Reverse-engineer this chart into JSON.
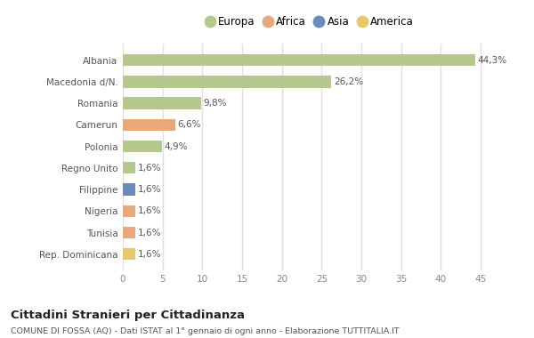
{
  "categories": [
    "Albania",
    "Macedonia d/N.",
    "Romania",
    "Camerun",
    "Polonia",
    "Regno Unito",
    "Filippine",
    "Nigeria",
    "Tunisia",
    "Rep. Dominicana"
  ],
  "values": [
    44.3,
    26.2,
    9.8,
    6.6,
    4.9,
    1.6,
    1.6,
    1.6,
    1.6,
    1.6
  ],
  "labels": [
    "44,3%",
    "26,2%",
    "9,8%",
    "6,6%",
    "4,9%",
    "1,6%",
    "1,6%",
    "1,6%",
    "1,6%",
    "1,6%"
  ],
  "colors": [
    "#b5c98e",
    "#b5c98e",
    "#b5c98e",
    "#e8a87c",
    "#b5c98e",
    "#b5c98e",
    "#6b8cba",
    "#e8a87c",
    "#e8a87c",
    "#e8c96a"
  ],
  "legend_labels": [
    "Europa",
    "Africa",
    "Asia",
    "America"
  ],
  "legend_colors": [
    "#b5c98e",
    "#e8a87c",
    "#6b8cba",
    "#e8c96a"
  ],
  "title": "Cittadini Stranieri per Cittadinanza",
  "subtitle": "COMUNE DI FOSSA (AQ) - Dati ISTAT al 1° gennaio di ogni anno - Elaborazione TUTTITALIA.IT",
  "xlim": [
    0,
    47
  ],
  "xticks": [
    0,
    5,
    10,
    15,
    20,
    25,
    30,
    35,
    40,
    45
  ],
  "bg_color": "#ffffff",
  "grid_color": "#e0e0e0"
}
